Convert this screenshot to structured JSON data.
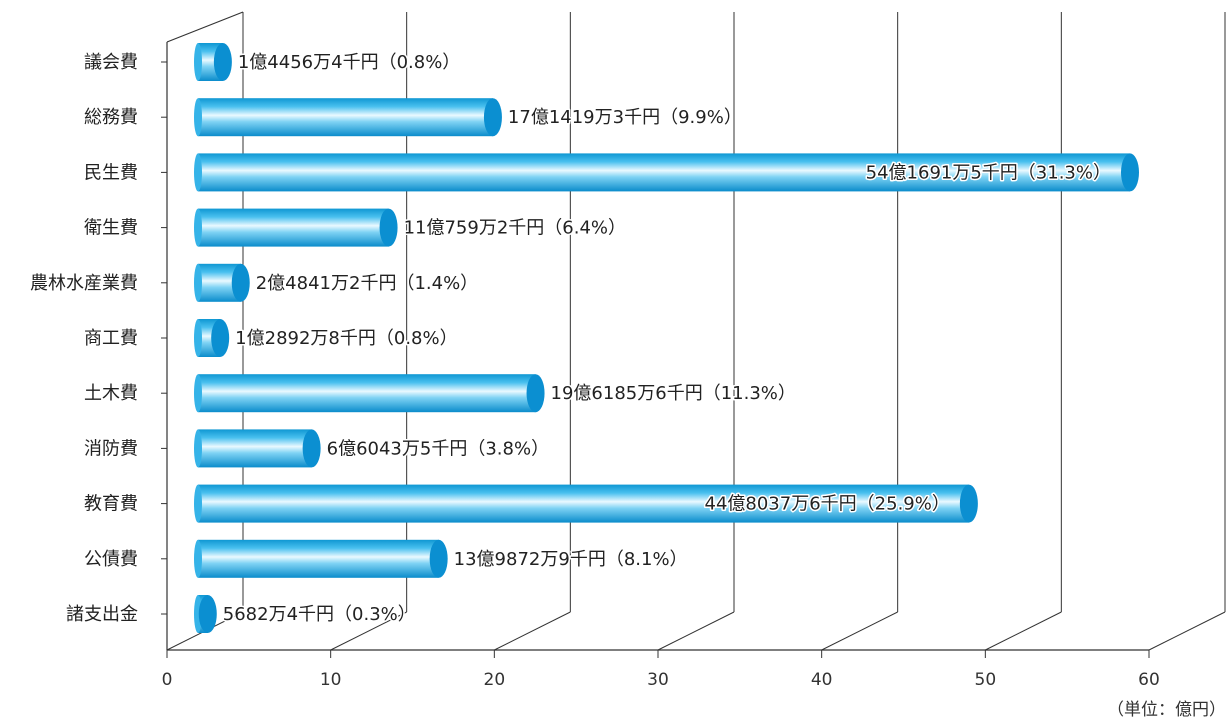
{
  "chart_data": {
    "type": "bar",
    "orientation": "horizontal",
    "style": "3d-cylinder",
    "categories": [
      "議会費",
      "総務費",
      "民生費",
      "衛生費",
      "農林水産業費",
      "商工費",
      "土木費",
      "消防費",
      "教育費",
      "公債費",
      "諸支出金"
    ],
    "values": [
      1.44564,
      17.14193,
      54.16915,
      11.07592,
      2.48412,
      1.28928,
      19.61856,
      6.60435,
      44.80376,
      13.98729,
      0.56824
    ],
    "data_labels": [
      "1億4456万4千円（0.8%）",
      "17億1419万3千円（9.9%）",
      "54億1691万5千円（31.3%）",
      "11億759万2千円（6.4%）",
      "2億4841万2千円（1.4%）",
      "1億2892万8千円（0.8%）",
      "19億6185万6千円（11.3%）",
      "6億6043万5千円（3.8%）",
      "44億8037万6千円（25.9%）",
      "13億9872万9千円（8.1%）",
      "5682万4千円（0.3%）"
    ],
    "xlim": [
      0,
      60
    ],
    "x_ticks": [
      "0",
      "10",
      "20",
      "30",
      "40",
      "50",
      "60"
    ],
    "unit": "（単位：億円）",
    "grid": true,
    "bar_color": "#1aa8e0",
    "grid_color": "#333333"
  }
}
